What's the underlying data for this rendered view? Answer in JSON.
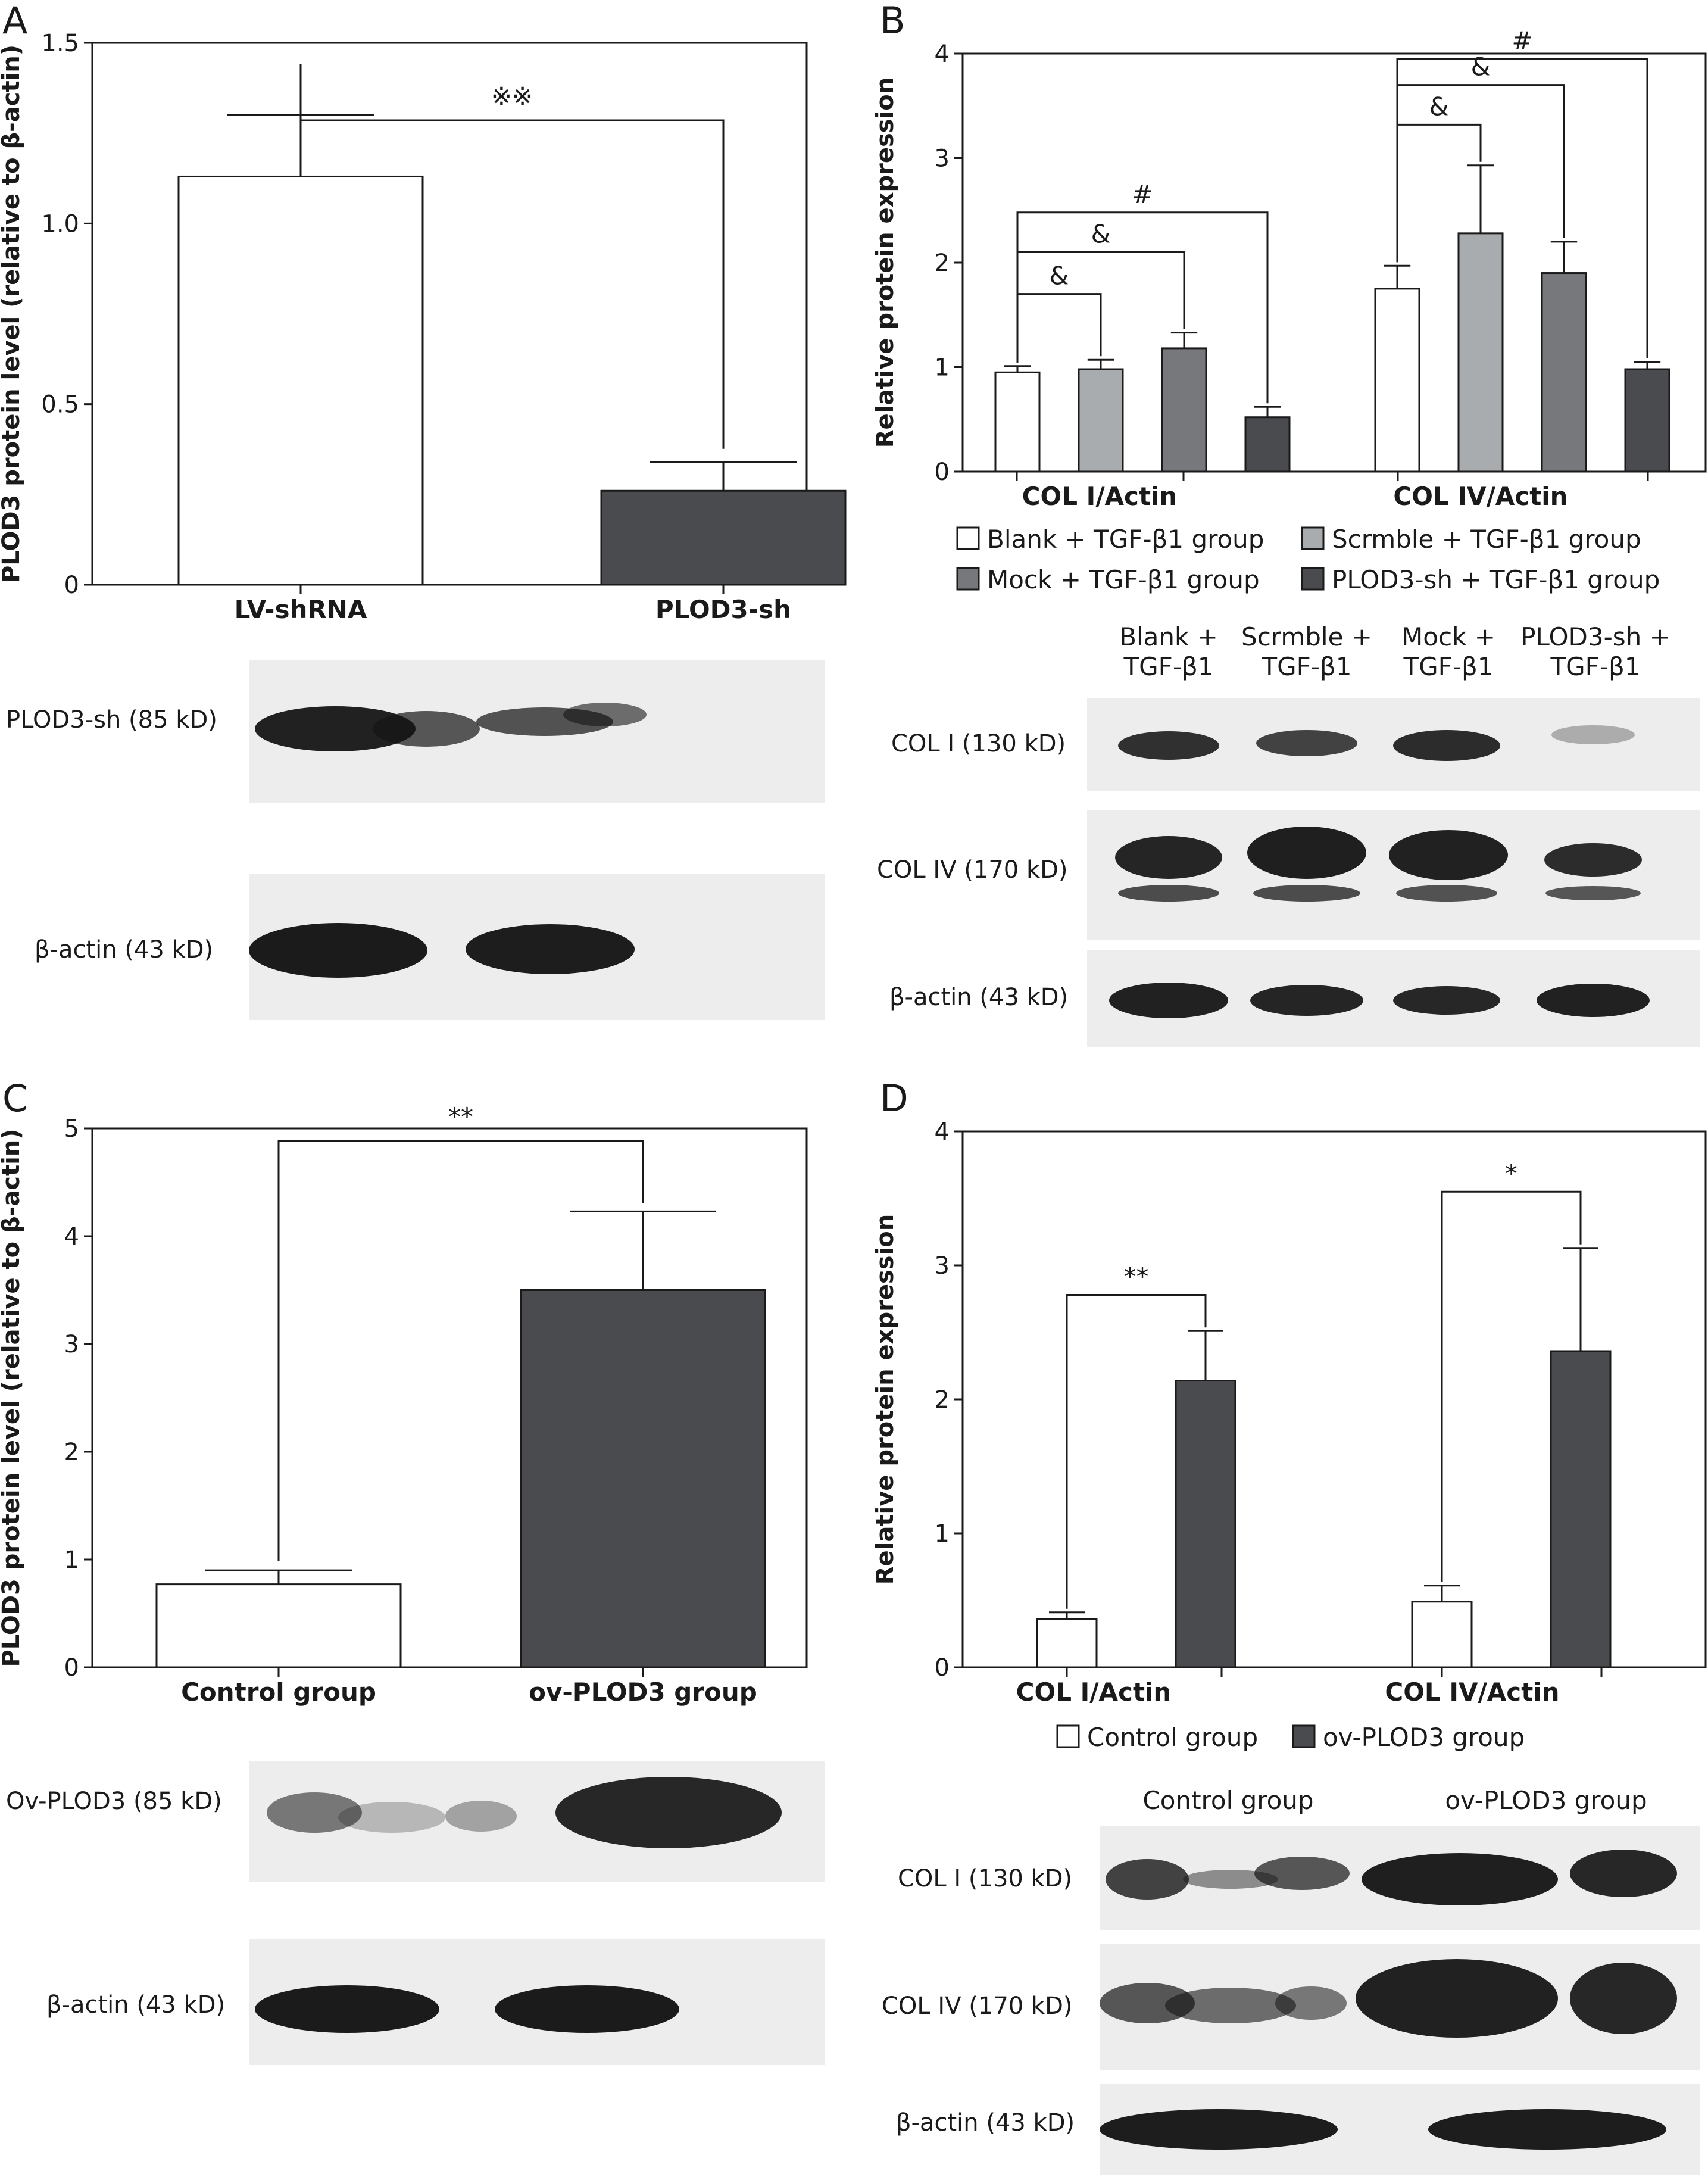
{
  "colors": {
    "white_bar": "#ffffff",
    "light_gray": "#a9acae",
    "mid_gray": "#76787c",
    "dark_gray": "#4a4b4f",
    "axis": "#1a1a1a",
    "blot_bg": "#ededed",
    "band": "#161616"
  },
  "panels": {
    "A": {
      "letter": "A",
      "blot_labels": [
        "PLOD3-sh (85 kD)",
        "β-actin (43 kD)"
      ]
    },
    "B": {
      "letter": "B",
      "blot_lane_labels": [
        [
          "Blank +",
          "TGF-β1"
        ],
        [
          "Scrmble +",
          "TGF-β1"
        ],
        [
          "Mock +",
          "TGF-β1"
        ],
        [
          "PLOD3-sh +",
          "TGF-β1"
        ]
      ],
      "blot_labels": [
        "COL I (130 kD)",
        "COL IV (170 kD)",
        "β-actin (43 kD)"
      ]
    },
    "C": {
      "letter": "C",
      "blot_labels": [
        "Ov-PLOD3 (85 kD)",
        "β-actin (43 kD)"
      ]
    },
    "D": {
      "letter": "D",
      "blot_lane_labels": [
        "Control group",
        "ov-PLOD3 group"
      ],
      "blot_labels": [
        "COL I (130 kD)",
        "COL IV (170 kD)",
        "β-actin (43 kD)"
      ]
    }
  },
  "chart_data": [
    {
      "panel": "A",
      "type": "bar",
      "ylabel": "PLOD3 protein level (relative to β-actin)",
      "xlabel": "",
      "ylim": [
        0,
        1.5
      ],
      "yticks": [
        "0",
        "0.5",
        "1.0",
        "1.5"
      ],
      "categories": [
        "LV-shRNA",
        "PLOD3-sh"
      ],
      "values": [
        1.13,
        0.26
      ],
      "errors": [
        0.17,
        0.08
      ],
      "bar_colors": [
        "white_bar",
        "dark_gray"
      ],
      "significance": [
        {
          "between": [
            0,
            1
          ],
          "label": "※※"
        }
      ]
    },
    {
      "panel": "B",
      "type": "bar",
      "ylabel": "Relative protein expression",
      "xlabel": "",
      "ylim": [
        0,
        4
      ],
      "yticks": [
        "0",
        "1",
        "2",
        "3",
        "4"
      ],
      "categories": [
        "COL I/Actin",
        "COL IV/Actin"
      ],
      "series": [
        {
          "name": "Blank + TGF-β1 group",
          "color": "white_bar",
          "values": [
            0.95,
            1.75
          ],
          "errors": [
            0.06,
            0.22
          ]
        },
        {
          "name": "Scrmble + TGF-β1 group",
          "color": "light_gray",
          "values": [
            0.98,
            2.28
          ],
          "errors": [
            0.09,
            0.65
          ]
        },
        {
          "name": "Mock + TGF-β1 group",
          "color": "mid_gray",
          "values": [
            1.18,
            1.9
          ],
          "errors": [
            0.15,
            0.3
          ]
        },
        {
          "name": "PLOD3-sh + TGF-β1 group",
          "color": "dark_gray",
          "values": [
            0.52,
            0.98
          ],
          "errors": [
            0.1,
            0.07
          ]
        }
      ],
      "significance": [
        {
          "group": 0,
          "from": 0,
          "to": 1,
          "y": 1.7,
          "label": "&"
        },
        {
          "group": 0,
          "from": 0,
          "to": 2,
          "y": 2.1,
          "label": "&"
        },
        {
          "group": 0,
          "from": 0,
          "to": 3,
          "y": 2.48,
          "label": "#"
        },
        {
          "group": 1,
          "from": 0,
          "to": 1,
          "y": 3.32,
          "label": "&"
        },
        {
          "group": 1,
          "from": 0,
          "to": 2,
          "y": 3.7,
          "label": "&"
        },
        {
          "group": 1,
          "from": 0,
          "to": 3,
          "y": 3.95,
          "label": "#"
        }
      ]
    },
    {
      "panel": "C",
      "type": "bar",
      "ylabel": "PLOD3 protein level (relative to β-actin)",
      "xlabel": "",
      "ylim": [
        0,
        5
      ],
      "yticks": [
        "0",
        "1",
        "2",
        "3",
        "4",
        "5"
      ],
      "categories": [
        "Control group",
        "ov-PLOD3 group"
      ],
      "values": [
        0.77,
        3.5
      ],
      "errors": [
        0.13,
        0.73
      ],
      "bar_colors": [
        "white_bar",
        "dark_gray"
      ],
      "significance": [
        {
          "between": [
            0,
            1
          ],
          "label": "**"
        }
      ]
    },
    {
      "panel": "D",
      "type": "bar",
      "ylabel": "Relative protein expression",
      "xlabel": "",
      "ylim": [
        0,
        4
      ],
      "yticks": [
        "0",
        "1",
        "2",
        "3",
        "4"
      ],
      "categories": [
        "COL I/Actin",
        "COL IV/Actin"
      ],
      "series": [
        {
          "name": "Control group",
          "color": "white_bar",
          "values": [
            0.36,
            0.49
          ],
          "errors": [
            0.05,
            0.12
          ]
        },
        {
          "name": "ov-PLOD3 group",
          "color": "dark_gray",
          "values": [
            2.14,
            2.36
          ],
          "errors": [
            0.37,
            0.77
          ]
        }
      ],
      "significance": [
        {
          "group": 0,
          "from": 0,
          "to": 1,
          "y": 2.78,
          "label": "**"
        },
        {
          "group": 1,
          "from": 0,
          "to": 1,
          "y": 3.55,
          "label": "*"
        }
      ]
    }
  ]
}
